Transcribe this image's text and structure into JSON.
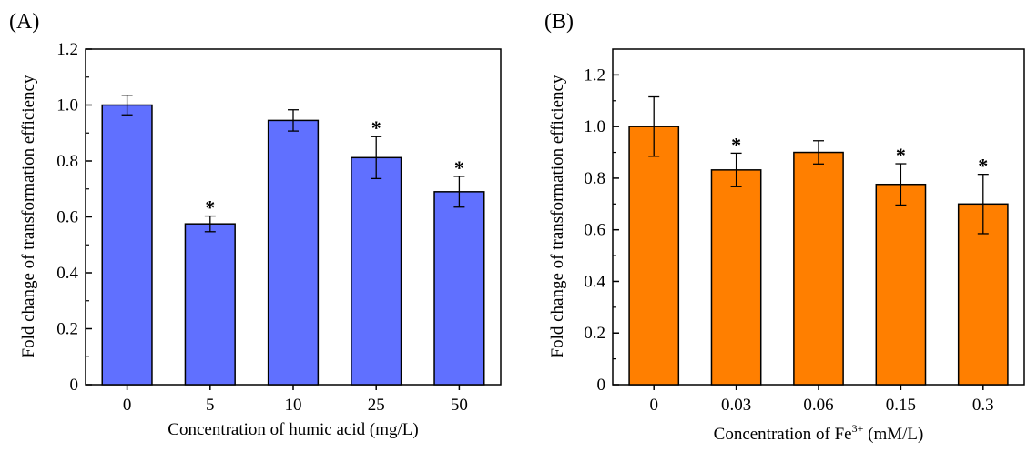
{
  "chart_data": [
    {
      "type": "bar",
      "panel_label": "(A)",
      "categories": [
        "0",
        "5",
        "10",
        "25",
        "50"
      ],
      "values": [
        1.0,
        0.575,
        0.945,
        0.812,
        0.69
      ],
      "errors": [
        0.035,
        0.028,
        0.038,
        0.075,
        0.055
      ],
      "significance": [
        "",
        "*",
        "",
        "*",
        "*"
      ],
      "xlabel": "Concentration of humic acid (mg/L)",
      "ylabel": "Fold change of transformation efficiency",
      "ylim": [
        0,
        1.2
      ],
      "yticks": [
        "0",
        "0.2",
        "0.4",
        "0.6",
        "0.8",
        "1.0",
        "1.2"
      ],
      "bar_color": "#6070ff",
      "grid": false
    },
    {
      "type": "bar",
      "panel_label": "(B)",
      "categories": [
        "0",
        "0.03",
        "0.06",
        "0.15",
        "0.3"
      ],
      "values": [
        1.0,
        0.832,
        0.9,
        0.776,
        0.7
      ],
      "errors": [
        0.115,
        0.065,
        0.045,
        0.08,
        0.115
      ],
      "significance": [
        "",
        "*",
        "",
        "*",
        "*"
      ],
      "xlabel_main": "Concentration of Fe",
      "xlabel_sup": "3+",
      "xlabel_tail": " (mM/L)",
      "ylabel": "Fold change of transformation efficiency",
      "ylim": [
        0,
        1.3
      ],
      "yticks": [
        "0",
        "0.2",
        "0.4",
        "0.6",
        "0.8",
        "1.0",
        "1.2"
      ],
      "bar_color": "#ff7f00",
      "grid": false
    }
  ]
}
